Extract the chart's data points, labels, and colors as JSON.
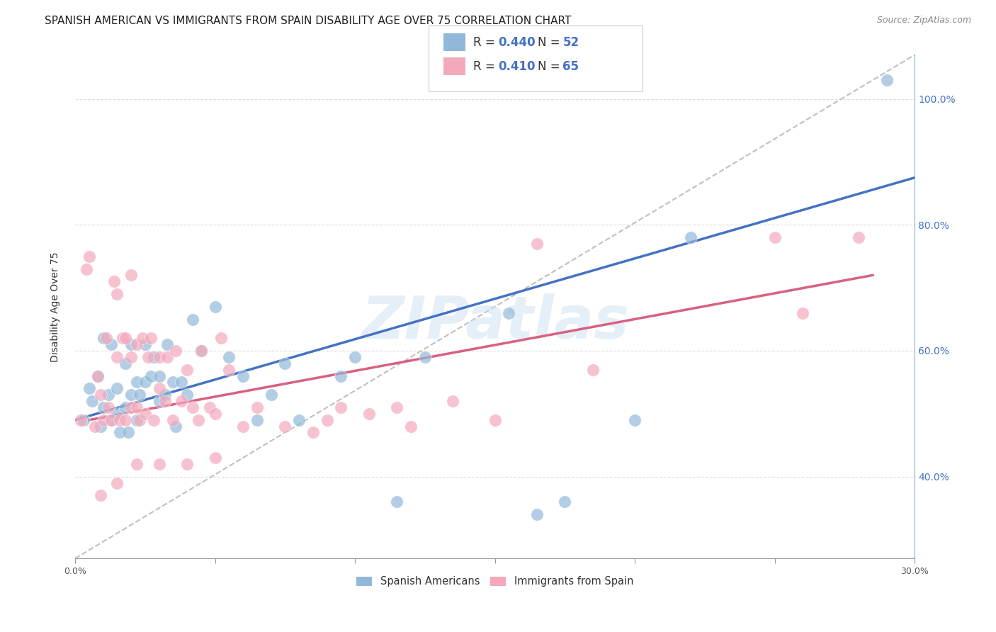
{
  "title": "SPANISH AMERICAN VS IMMIGRANTS FROM SPAIN DISABILITY AGE OVER 75 CORRELATION CHART",
  "source": "Source: ZipAtlas.com",
  "ylabel": "Disability Age Over 75",
  "x_min": 0.0,
  "x_max": 0.3,
  "y_min": 0.27,
  "y_max": 1.07,
  "x_ticks": [
    0.0,
    0.05,
    0.1,
    0.15,
    0.2,
    0.25,
    0.3
  ],
  "x_tick_labels": [
    "0.0%",
    "",
    "",
    "",
    "",
    "",
    "30.0%"
  ],
  "y_ticks": [
    0.4,
    0.6,
    0.8,
    1.0
  ],
  "y_tick_labels": [
    "40.0%",
    "60.0%",
    "80.0%",
    "100.0%"
  ],
  "blue_color": "#92b8d9",
  "pink_color": "#f4a8bc",
  "line_blue": "#4472c4",
  "line_pink": "#d96080",
  "line_diag_color": "#b0b0b0",
  "watermark": "ZIPatlas",
  "blue_scatter_x": [
    0.003,
    0.005,
    0.006,
    0.008,
    0.009,
    0.01,
    0.01,
    0.012,
    0.013,
    0.013,
    0.015,
    0.015,
    0.016,
    0.018,
    0.018,
    0.019,
    0.02,
    0.02,
    0.022,
    0.022,
    0.023,
    0.025,
    0.025,
    0.027,
    0.028,
    0.03,
    0.03,
    0.032,
    0.033,
    0.035,
    0.036,
    0.038,
    0.04,
    0.042,
    0.045,
    0.05,
    0.055,
    0.06,
    0.065,
    0.07,
    0.075,
    0.08,
    0.095,
    0.1,
    0.115,
    0.125,
    0.155,
    0.165,
    0.175,
    0.2,
    0.22,
    0.29
  ],
  "blue_scatter_y": [
    0.49,
    0.54,
    0.52,
    0.56,
    0.48,
    0.51,
    0.62,
    0.53,
    0.49,
    0.61,
    0.5,
    0.54,
    0.47,
    0.58,
    0.51,
    0.47,
    0.53,
    0.61,
    0.49,
    0.55,
    0.53,
    0.55,
    0.61,
    0.56,
    0.59,
    0.52,
    0.56,
    0.53,
    0.61,
    0.55,
    0.48,
    0.55,
    0.53,
    0.65,
    0.6,
    0.67,
    0.59,
    0.56,
    0.49,
    0.53,
    0.58,
    0.49,
    0.56,
    0.59,
    0.36,
    0.59,
    0.66,
    0.34,
    0.36,
    0.49,
    0.78,
    1.03
  ],
  "pink_scatter_x": [
    0.002,
    0.004,
    0.005,
    0.007,
    0.008,
    0.009,
    0.01,
    0.011,
    0.012,
    0.013,
    0.014,
    0.015,
    0.015,
    0.016,
    0.017,
    0.018,
    0.018,
    0.02,
    0.02,
    0.02,
    0.022,
    0.022,
    0.023,
    0.024,
    0.025,
    0.026,
    0.027,
    0.028,
    0.03,
    0.03,
    0.032,
    0.033,
    0.035,
    0.036,
    0.038,
    0.04,
    0.042,
    0.044,
    0.045,
    0.048,
    0.05,
    0.052,
    0.055,
    0.06,
    0.065,
    0.075,
    0.085,
    0.09,
    0.095,
    0.105,
    0.115,
    0.12,
    0.135,
    0.15,
    0.165,
    0.185,
    0.25,
    0.26,
    0.28,
    0.05,
    0.04,
    0.03,
    0.022,
    0.015,
    0.009
  ],
  "pink_scatter_y": [
    0.49,
    0.73,
    0.75,
    0.48,
    0.56,
    0.53,
    0.49,
    0.62,
    0.51,
    0.49,
    0.71,
    0.69,
    0.59,
    0.49,
    0.62,
    0.49,
    0.62,
    0.51,
    0.59,
    0.72,
    0.51,
    0.61,
    0.49,
    0.62,
    0.5,
    0.59,
    0.62,
    0.49,
    0.54,
    0.59,
    0.52,
    0.59,
    0.49,
    0.6,
    0.52,
    0.57,
    0.51,
    0.49,
    0.6,
    0.51,
    0.5,
    0.62,
    0.57,
    0.48,
    0.51,
    0.48,
    0.47,
    0.49,
    0.51,
    0.5,
    0.51,
    0.48,
    0.52,
    0.49,
    0.77,
    0.57,
    0.78,
    0.66,
    0.78,
    0.43,
    0.42,
    0.42,
    0.42,
    0.39,
    0.37
  ],
  "blue_line_x": [
    0.0,
    0.3
  ],
  "blue_line_y": [
    0.49,
    0.875
  ],
  "pink_line_x": [
    0.005,
    0.285
  ],
  "pink_line_y": [
    0.49,
    0.72
  ],
  "diag_line_x": [
    0.0,
    0.3
  ],
  "diag_line_y": [
    0.27,
    1.07
  ],
  "bg_color": "#ffffff",
  "grid_color": "#dddddd",
  "title_fontsize": 11,
  "axis_label_fontsize": 10,
  "tick_fontsize": 9,
  "legend_fontsize": 11
}
